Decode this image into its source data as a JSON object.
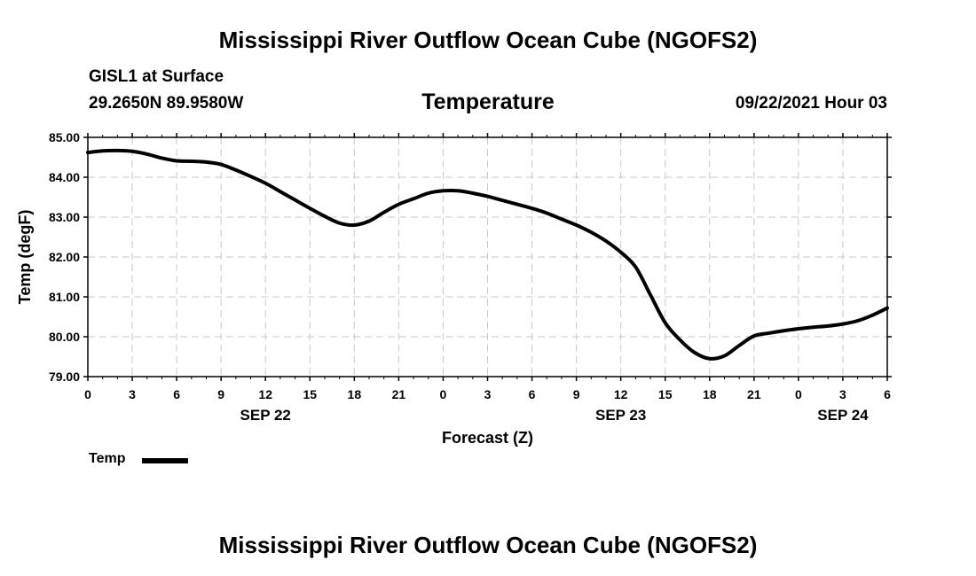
{
  "header": {
    "title": "Mississippi River Outflow Ocean Cube (NGOFS2)",
    "station": "GISL1 at Surface",
    "coords": "29.2650N  89.9580W",
    "variable": "Temperature",
    "datetime": "09/22/2021 Hour 03"
  },
  "legend": {
    "label": "Temp"
  },
  "footer": {
    "title": "Mississippi River Outflow Ocean Cube (NGOFS2)"
  },
  "chart_data": {
    "type": "line",
    "title": "Temperature",
    "xlabel": "Forecast (Z)",
    "ylabel": "Temp (degF)",
    "ylim": [
      79.0,
      85.0
    ],
    "xlim": [
      0,
      54
    ],
    "grid": true,
    "y_ticks": [
      "79.00",
      "80.00",
      "81.00",
      "82.00",
      "83.00",
      "84.00",
      "85.00"
    ],
    "y_tick_values": [
      79,
      80,
      81,
      82,
      83,
      84,
      85
    ],
    "x_ticks": [
      "0",
      "3",
      "6",
      "9",
      "12",
      "15",
      "18",
      "21",
      "0",
      "3",
      "6",
      "9",
      "12",
      "15",
      "18",
      "21",
      "0",
      "3",
      "6"
    ],
    "x_tick_values": [
      0,
      3,
      6,
      9,
      12,
      15,
      18,
      21,
      24,
      27,
      30,
      33,
      36,
      39,
      42,
      45,
      48,
      51,
      54
    ],
    "date_labels": [
      {
        "label": "SEP 22",
        "x": 12
      },
      {
        "label": "SEP 23",
        "x": 36
      },
      {
        "label": "SEP 24",
        "x": 51
      }
    ],
    "series": [
      {
        "name": "Temp",
        "x": [
          0,
          1,
          2,
          3,
          4,
          5,
          6,
          7,
          8,
          9,
          10,
          11,
          12,
          13,
          14,
          15,
          16,
          17,
          18,
          19,
          20,
          21,
          22,
          23,
          24,
          25,
          26,
          27,
          28,
          29,
          30,
          31,
          32,
          33,
          34,
          35,
          36,
          37,
          38,
          39,
          40,
          41,
          42,
          43,
          44,
          45,
          46,
          47,
          48,
          49,
          50,
          51,
          52,
          53,
          54
        ],
        "values": [
          84.62,
          84.66,
          84.67,
          84.65,
          84.58,
          84.48,
          84.41,
          84.4,
          84.38,
          84.32,
          84.18,
          84.02,
          83.85,
          83.64,
          83.43,
          83.22,
          83.02,
          82.85,
          82.8,
          82.9,
          83.12,
          83.32,
          83.46,
          83.6,
          83.66,
          83.66,
          83.6,
          83.52,
          83.42,
          83.32,
          83.22,
          83.1,
          82.95,
          82.8,
          82.62,
          82.4,
          82.12,
          81.75,
          81.05,
          80.35,
          79.92,
          79.6,
          79.45,
          79.52,
          79.78,
          80.02,
          80.09,
          80.15,
          80.2,
          80.24,
          80.27,
          80.32,
          80.4,
          80.54,
          80.72
        ]
      }
    ]
  }
}
